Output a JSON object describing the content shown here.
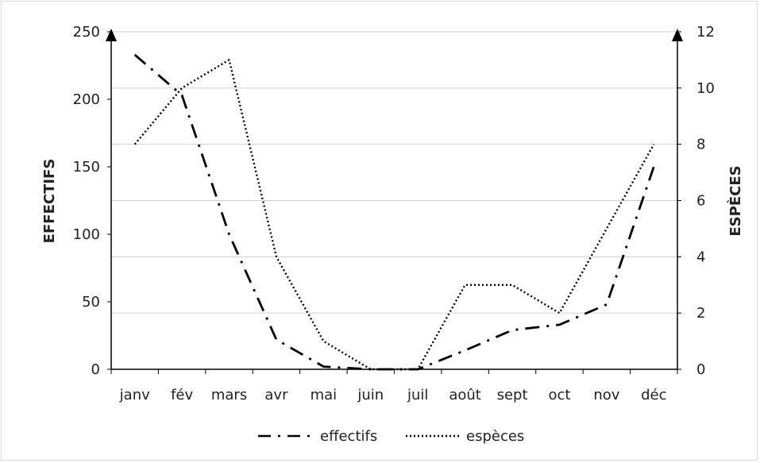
{
  "chart_data": {
    "type": "line",
    "categories": [
      "janv",
      "fév",
      "mars",
      "avr",
      "mai",
      "juin",
      "juil",
      "août",
      "sept",
      "oct",
      "nov",
      "déc"
    ],
    "ylabel_left": "EFFECTIFS",
    "ylabel_right": "ESPÈCES",
    "ylim_left": [
      0,
      250
    ],
    "ylim_right": [
      0,
      12
    ],
    "yticks_left": [
      "0",
      "50",
      "100",
      "150",
      "200",
      "250"
    ],
    "yticks_right": [
      "0",
      "2",
      "4",
      "6",
      "8",
      "10",
      "12"
    ],
    "gridlines": true,
    "legend_position": "bottom",
    "series": [
      {
        "name": "effectifs",
        "axis": "left",
        "line_style": "dash-dot",
        "color": "#000000",
        "values": [
          233,
          203,
          100,
          22,
          2,
          0,
          0,
          14,
          29,
          33,
          48,
          150
        ]
      },
      {
        "name": "espèces",
        "axis": "right",
        "line_style": "dotted",
        "color": "#000000",
        "values": [
          8,
          10,
          11,
          4,
          1,
          0,
          0,
          3,
          3,
          2,
          5,
          8
        ]
      }
    ]
  }
}
